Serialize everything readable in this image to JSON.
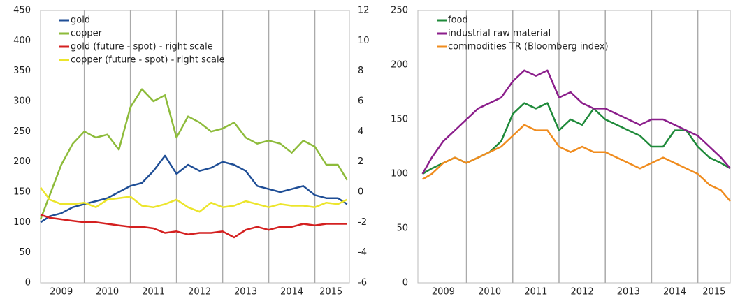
{
  "chart_data": [
    {
      "type": "line",
      "legend": "upper left",
      "x": [
        2009.05,
        2009.25,
        2009.5,
        2009.75,
        2010,
        2010.25,
        2010.5,
        2010.75,
        2011,
        2011.25,
        2011.5,
        2011.75,
        2012,
        2012.25,
        2012.5,
        2012.75,
        2013,
        2013.25,
        2013.5,
        2013.75,
        2014,
        2014.25,
        2014.5,
        2014.75,
        2015,
        2015.25,
        2015.5,
        2015.7
      ],
      "xlim": [
        2009.05,
        2015.75
      ],
      "xticks": [
        {
          "value": 2009.5,
          "label": "2009"
        },
        {
          "value": 2010.5,
          "label": "2010"
        },
        {
          "value": 2011.5,
          "label": "2011"
        },
        {
          "value": 2012.5,
          "label": "2012"
        },
        {
          "value": 2013.5,
          "label": "2013"
        },
        {
          "value": 2014.5,
          "label": "2014"
        },
        {
          "value": 2015.35,
          "label": "2015"
        }
      ],
      "xgrid": [
        2010,
        2011,
        2012,
        2013,
        2014,
        2015
      ],
      "ylim": [
        0,
        450
      ],
      "yticks": [
        0,
        50,
        100,
        150,
        200,
        250,
        300,
        350,
        400,
        450
      ],
      "y2lim": [
        -6,
        12
      ],
      "y2ticks": [
        -6,
        -4,
        -2,
        0,
        2,
        4,
        6,
        8,
        10,
        12
      ],
      "series": [
        {
          "name": "gold",
          "color": "#1f4e96",
          "values": [
            100,
            110,
            115,
            125,
            130,
            135,
            140,
            150,
            160,
            165,
            185,
            210,
            180,
            195,
            185,
            190,
            200,
            195,
            185,
            160,
            155,
            150,
            155,
            160,
            145,
            140,
            140,
            130
          ]
        },
        {
          "name": "copper",
          "color": "#8dbb3a",
          "values": [
            105,
            145,
            195,
            230,
            250,
            240,
            245,
            220,
            290,
            320,
            300,
            310,
            240,
            275,
            265,
            250,
            255,
            265,
            240,
            230,
            235,
            230,
            215,
            235,
            225,
            195,
            195,
            170
          ]
        },
        {
          "name": "gold (future - spot) - right scale",
          "color": "#d42020",
          "axis": "y2",
          "values": [
            -1.5,
            -1.7,
            -1.8,
            -1.9,
            -2.0,
            -2.0,
            -2.1,
            -2.2,
            -2.3,
            -2.3,
            -2.4,
            -2.7,
            -2.6,
            -2.8,
            -2.7,
            -2.7,
            -2.6,
            -3.0,
            -2.5,
            -2.3,
            -2.5,
            -2.3,
            -2.3,
            -2.1,
            -2.2,
            -2.1,
            -2.1,
            -2.1
          ]
        },
        {
          "name": "copper (future - spot) - right scale",
          "color": "#ece52c",
          "axis": "y2",
          "values": [
            0.3,
            -0.5,
            -0.8,
            -0.8,
            -0.7,
            -1.0,
            -0.5,
            -0.4,
            -0.3,
            -0.9,
            -1.0,
            -0.8,
            -0.5,
            -1.0,
            -1.3,
            -0.7,
            -1.0,
            -0.9,
            -0.6,
            -0.8,
            -1.0,
            -0.8,
            -0.9,
            -0.9,
            -1.0,
            -0.7,
            -0.8,
            -0.5
          ]
        }
      ]
    },
    {
      "type": "line",
      "legend": "upper left",
      "x": [
        2009.05,
        2009.25,
        2009.5,
        2009.75,
        2010,
        2010.25,
        2010.5,
        2010.75,
        2011,
        2011.25,
        2011.5,
        2011.75,
        2012,
        2012.25,
        2012.5,
        2012.75,
        2013,
        2013.25,
        2013.5,
        2013.75,
        2014,
        2014.25,
        2014.5,
        2014.75,
        2015,
        2015.25,
        2015.5,
        2015.7
      ],
      "xlim": [
        2008.95,
        2015.7
      ],
      "xticks": [
        {
          "value": 2009.5,
          "label": "2009"
        },
        {
          "value": 2010.5,
          "label": "2010"
        },
        {
          "value": 2011.5,
          "label": "2011"
        },
        {
          "value": 2012.5,
          "label": "2012"
        },
        {
          "value": 2013.5,
          "label": "2013"
        },
        {
          "value": 2014.5,
          "label": "2014"
        },
        {
          "value": 2015.35,
          "label": "2015"
        }
      ],
      "xgrid": [
        2010,
        2011,
        2012,
        2013,
        2014,
        2015
      ],
      "ylim": [
        0,
        250
      ],
      "yticks": [
        0,
        50,
        100,
        150,
        200,
        250
      ],
      "series": [
        {
          "name": "food",
          "color": "#1f8a3a",
          "values": [
            100,
            105,
            110,
            115,
            110,
            115,
            120,
            130,
            155,
            165,
            160,
            165,
            140,
            150,
            145,
            160,
            150,
            145,
            140,
            135,
            125,
            125,
            140,
            140,
            125,
            115,
            110,
            105
          ]
        },
        {
          "name": "industrial raw material",
          "color": "#8b1e8b",
          "values": [
            100,
            115,
            130,
            140,
            150,
            160,
            165,
            170,
            185,
            195,
            190,
            195,
            170,
            175,
            165,
            160,
            160,
            155,
            150,
            145,
            150,
            150,
            145,
            140,
            135,
            125,
            115,
            105
          ]
        },
        {
          "name": "commodities TR (Bloomberg index)",
          "color": "#f08c1e",
          "values": [
            95,
            100,
            110,
            115,
            110,
            115,
            120,
            125,
            135,
            145,
            140,
            140,
            125,
            120,
            125,
            120,
            120,
            115,
            110,
            105,
            110,
            115,
            110,
            105,
            100,
            90,
            85,
            75
          ]
        }
      ]
    }
  ]
}
